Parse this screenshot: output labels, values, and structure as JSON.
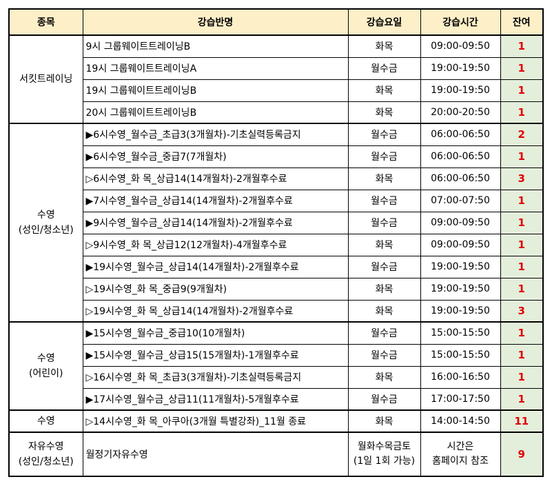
{
  "headers": {
    "category": "종목",
    "class_name": "강습반명",
    "days": "강습요일",
    "time": "강습시간",
    "remaining": "잔여"
  },
  "groups": [
    {
      "category": [
        "서킷트레이닝"
      ],
      "rows": [
        {
          "name": "9시 그룹웨이트트레이닝B",
          "days": "화목",
          "time": "09:00-09:50",
          "remaining": "1"
        },
        {
          "name": "19시 그룹웨이트트레이닝A",
          "days": "월수금",
          "time": "19:00-19:50",
          "remaining": "1"
        },
        {
          "name": "19시 그룹웨이트트레이닝B",
          "days": "화목",
          "time": "19:00-19:50",
          "remaining": "1"
        },
        {
          "name": "20시 그룹웨이트트레이닝B",
          "days": "화목",
          "time": "20:00-20:50",
          "remaining": "1"
        }
      ]
    },
    {
      "category": [
        "수영",
        "(성인/청소년)"
      ],
      "rows": [
        {
          "name": "▶6시수영_월수금_초급3(3개월차)-기초실력등록금지",
          "days": "월수금",
          "time": "06:00-06:50",
          "remaining": "2"
        },
        {
          "name": "▶6시수영_월수금_중급7(7개월차)",
          "days": "월수금",
          "time": "06:00-06:50",
          "remaining": "1"
        },
        {
          "name": "▷6시수영_화  목_상급14(14개월차)-2개월후수료",
          "days": "화목",
          "time": "06:00-06:50",
          "remaining": "3"
        },
        {
          "name": "▶7시수영_월수금_상급14(14개월차)-2개월후수료",
          "days": "월수금",
          "time": "07:00-07:50",
          "remaining": "1"
        },
        {
          "name": "▶9시수영_월수금_상급14(14개월차)-2개월후수료",
          "days": "월수금",
          "time": "09:00-09:50",
          "remaining": "1"
        },
        {
          "name": "▷9시수영_화  목_상급12(12개월차)-4개월후수료",
          "days": "화목",
          "time": "09:00-09:50",
          "remaining": "1"
        },
        {
          "name": "▶19시수영_월수금_상급14(14개월차)-2개월후수료",
          "days": "월수금",
          "time": "19:00-19:50",
          "remaining": "1"
        },
        {
          "name": "▷19시수영_화  목_중급9(9개월차)",
          "days": "화목",
          "time": "19:00-19:50",
          "remaining": "1"
        },
        {
          "name": "▷19시수영_화  목_상급14(14개월차)-2개월후수료",
          "days": "화목",
          "time": "19:00-19:50",
          "remaining": "3"
        }
      ]
    },
    {
      "category": [
        "수영",
        "(어린이)"
      ],
      "rows": [
        {
          "name": "▶15시수영_월수금_중급10(10개월차)",
          "days": "월수금",
          "time": "15:00-15:50",
          "remaining": "1"
        },
        {
          "name": "▶15시수영_월수금_상급15(15개월차)-1개월후수료",
          "days": "월수금",
          "time": "15:00-15:50",
          "remaining": "1"
        },
        {
          "name": "▷16시수영_화  목_초급3(3개월차)-기초실력등록금지",
          "days": "화목",
          "time": "16:00-16:50",
          "remaining": "1"
        },
        {
          "name": "▶17시수영_월수금_상급11(11개월차)-5개월후수료",
          "days": "월수금",
          "time": "17:00-17:50",
          "remaining": "1"
        }
      ]
    },
    {
      "category": [
        "수영"
      ],
      "rows": [
        {
          "name": "▷14시수영_화  목_아쿠아(3개월 특별강좌)_11월 종료",
          "days": "화목",
          "time": "14:00-14:50",
          "remaining": "11"
        }
      ]
    },
    {
      "category": [
        "자유수영",
        "(성인/청소년)"
      ],
      "tall": true,
      "rows": [
        {
          "name": "월정기자유수영",
          "days": [
            "월화수목금토",
            "(1일 1회 가능)"
          ],
          "time": [
            "시간은",
            "홈페이지 참조"
          ],
          "remaining": "9"
        }
      ]
    }
  ]
}
